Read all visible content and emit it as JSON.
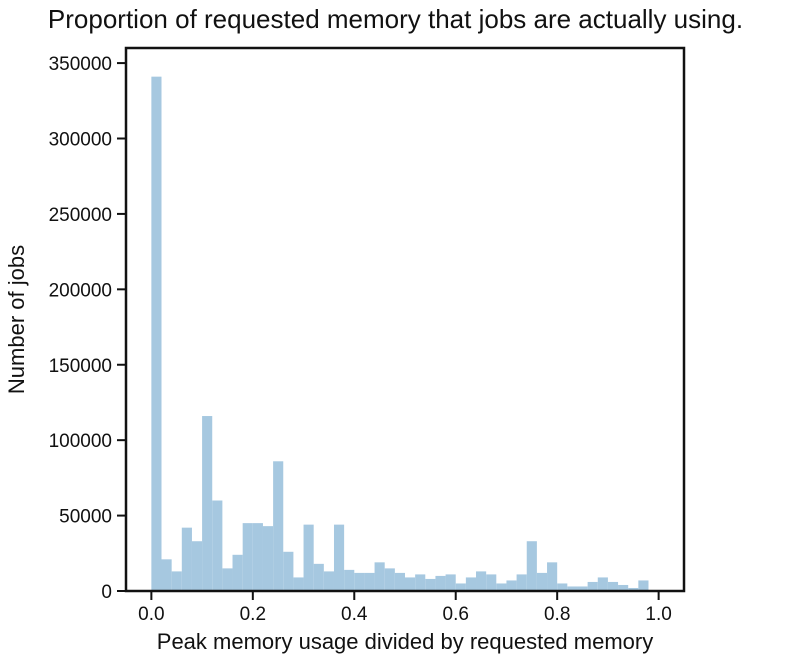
{
  "chart_data": {
    "type": "bar",
    "title": "Proportion of requested memory that jobs are actually using.",
    "xlabel": "Peak memory usage divided by requested memory",
    "ylabel": "Number of jobs",
    "xlim": [
      -0.05,
      1.05
    ],
    "ylim": [
      0,
      360000
    ],
    "xticks": [
      0.0,
      0.2,
      0.4,
      0.6,
      0.8,
      1.0
    ],
    "xtick_labels": [
      "0.0",
      "0.2",
      "0.4",
      "0.6",
      "0.8",
      "1.0"
    ],
    "yticks": [
      0,
      50000,
      100000,
      150000,
      200000,
      250000,
      300000,
      350000
    ],
    "ytick_labels": [
      "0",
      "50000",
      "100000",
      "150000",
      "200000",
      "250000",
      "300000",
      "350000"
    ],
    "grid": false,
    "bar_color": "#a6c8e0",
    "bin_edges": [
      0.0,
      0.02,
      0.04,
      0.06,
      0.08,
      0.1,
      0.12,
      0.14,
      0.16,
      0.18,
      0.2,
      0.22,
      0.24,
      0.26,
      0.28,
      0.3,
      0.32,
      0.34,
      0.36,
      0.38,
      0.4,
      0.42,
      0.44,
      0.46,
      0.48,
      0.5,
      0.52,
      0.54,
      0.56,
      0.58,
      0.6,
      0.62,
      0.64,
      0.66,
      0.68,
      0.7,
      0.72,
      0.74,
      0.76,
      0.78,
      0.8,
      0.82,
      0.84,
      0.86,
      0.88,
      0.9,
      0.92,
      0.94,
      0.96,
      0.98,
      1.0
    ],
    "values": [
      341000,
      21000,
      13000,
      42000,
      33000,
      116000,
      60000,
      15000,
      24000,
      45000,
      45000,
      43000,
      86000,
      26000,
      9000,
      44000,
      18000,
      13000,
      44000,
      14000,
      12000,
      12000,
      19000,
      15000,
      12000,
      9000,
      11000,
      8000,
      10000,
      11000,
      5000,
      9000,
      13000,
      11000,
      5000,
      7000,
      11000,
      33000,
      12000,
      19000,
      5000,
      3000,
      3000,
      6000,
      9000,
      6000,
      4000,
      2000,
      7000,
      0
    ]
  }
}
